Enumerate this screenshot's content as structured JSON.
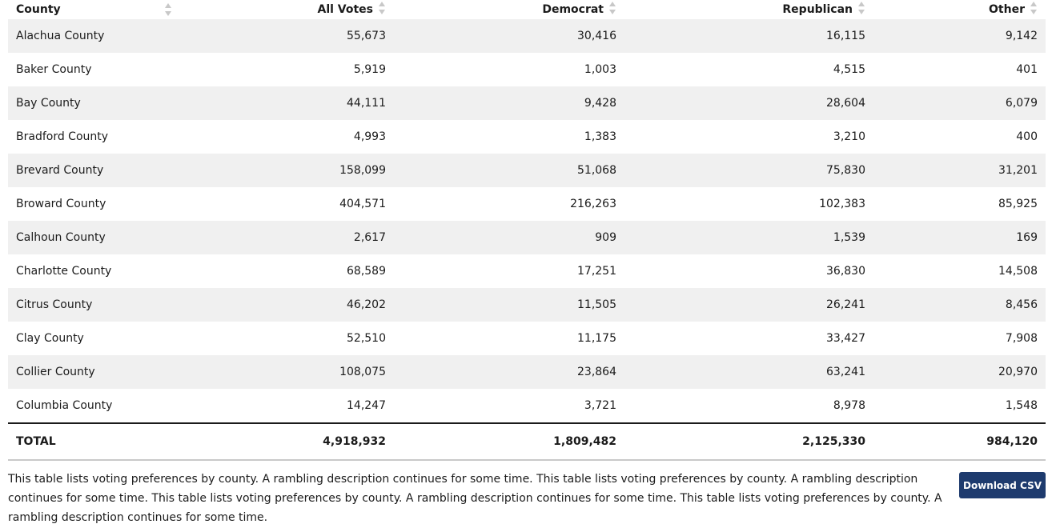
{
  "table": {
    "headers": [
      "County",
      "All Votes",
      "Democrat",
      "Republican",
      "Other"
    ],
    "rows": [
      [
        "Alachua County",
        "55,673",
        "30,416",
        "16,115",
        "9,142"
      ],
      [
        "Baker County",
        "5,919",
        "1,003",
        "4,515",
        "401"
      ],
      [
        "Bay County",
        "44,111",
        "9,428",
        "28,604",
        "6,079"
      ],
      [
        "Bradford County",
        "4,993",
        "1,383",
        "3,210",
        "400"
      ],
      [
        "Brevard County",
        "158,099",
        "51,068",
        "75,830",
        "31,201"
      ],
      [
        "Broward County",
        "404,571",
        "216,263",
        "102,383",
        "85,925"
      ],
      [
        "Calhoun County",
        "2,617",
        "909",
        "1,539",
        "169"
      ],
      [
        "Charlotte County",
        "68,589",
        "17,251",
        "36,830",
        "14,508"
      ],
      [
        "Citrus County",
        "46,202",
        "11,505",
        "26,241",
        "8,456"
      ],
      [
        "Clay County",
        "52,510",
        "11,175",
        "33,427",
        "7,908"
      ],
      [
        "Collier County",
        "108,075",
        "23,864",
        "63,241",
        "20,970"
      ],
      [
        "Columbia County",
        "14,247",
        "3,721",
        "8,978",
        "1,548"
      ]
    ],
    "total": [
      "TOTAL",
      "4,918,932",
      "1,809,482",
      "2,125,330",
      "984,120"
    ]
  },
  "footer": {
    "description": "This table lists voting preferences by county. A rambling description continues for some time. This table lists voting preferences by county. A rambling description continues for some time. This table lists voting preferences by county. A rambling description continues for some time. This table lists voting preferences by county. A rambling description continues for some time.",
    "download_label": "Download CSV"
  },
  "colors": {
    "stripe": "#f0f0f0",
    "button": "#1e3b6e",
    "sort_icon": "#c8c8c8"
  },
  "icons": {
    "sort": "sort-arrows-icon"
  }
}
